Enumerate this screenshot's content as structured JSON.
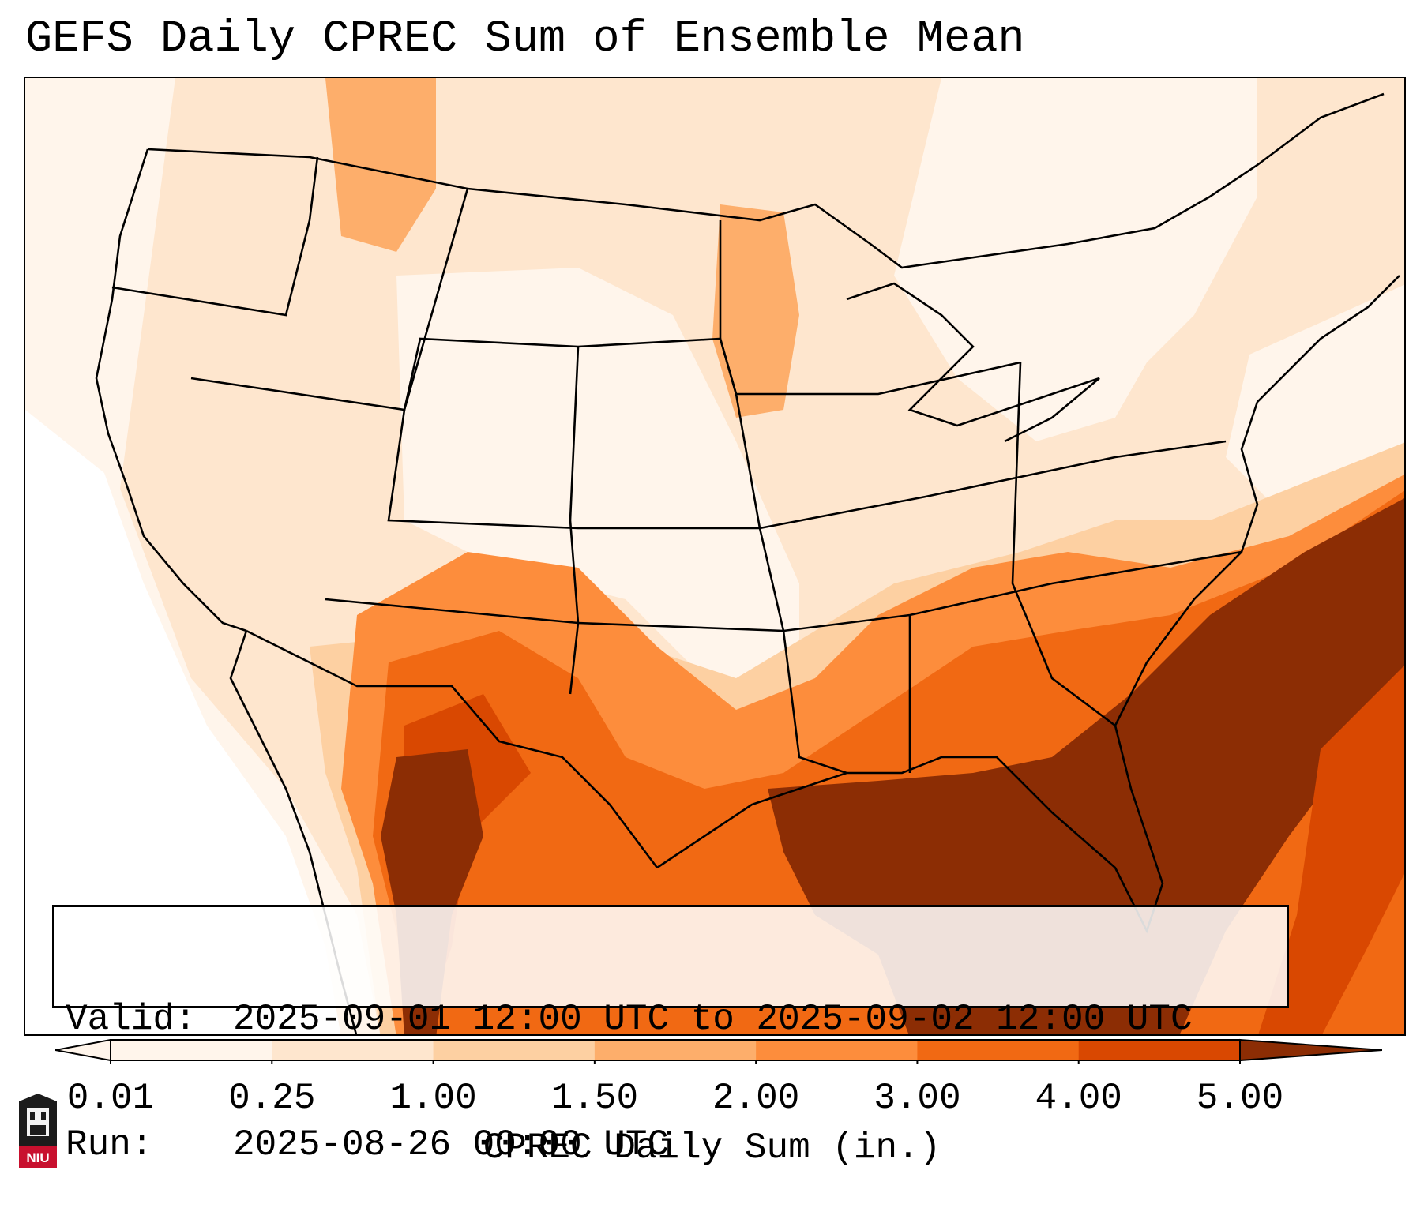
{
  "title": "GEFS Daily CPREC Sum of Ensemble Mean",
  "info": {
    "valid_label": "Valid:",
    "valid_value": "2025-09-01 12:00 UTC to 2025-09-02 12:00 UTC",
    "run_label": "Run:",
    "run_value": "2025-08-26 00:00 UTC"
  },
  "colorbar": {
    "label": "CPREC Daily Sum (in.)",
    "ticks": [
      "0.01",
      "0.25",
      "1.00",
      "1.50",
      "2.00",
      "3.00",
      "4.00",
      "5.00"
    ],
    "colors": [
      "#fff5eb",
      "#fee6ce",
      "#fdd0a2",
      "#fdae6b",
      "#fd8d3c",
      "#f16913",
      "#d94801",
      "#8c2d04"
    ],
    "extend": "both"
  },
  "map": {
    "projection": "Lambert conformal, CONUS",
    "field": "CPREC daily sum",
    "overlays": [
      "state borders",
      "country borders",
      "coastlines"
    ]
  },
  "logo": {
    "text": "NIU"
  }
}
